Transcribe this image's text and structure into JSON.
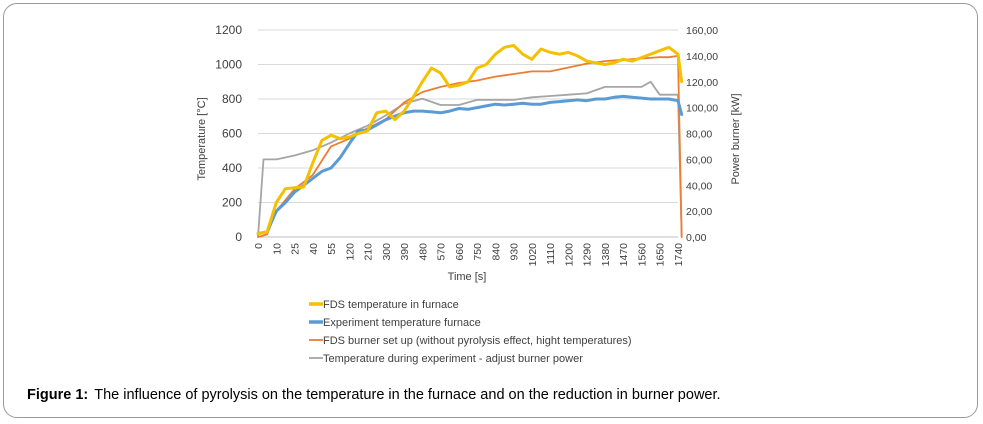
{
  "caption": {
    "label": "Figure 1:",
    "text": "The influence of pyrolysis on the temperature in the furnace and on the reduction in burner power."
  },
  "chart_data": {
    "type": "line",
    "title": "",
    "xlabel": "Time [s]",
    "ylabel": "Temperature [°C]",
    "y2label": "Power burner [kW]",
    "ylim": [
      0,
      1200
    ],
    "y2lim": [
      0,
      160
    ],
    "yticks": [
      "0",
      "200",
      "400",
      "600",
      "800",
      "1000",
      "1200"
    ],
    "y2ticks": [
      "0,00",
      "20,00",
      "40,00",
      "60,00",
      "80,00",
      "100,00",
      "120,00",
      "140,00",
      "160,00"
    ],
    "xticks": [
      "0",
      "10",
      "25",
      "40",
      "55",
      "120",
      "210",
      "300",
      "390",
      "480",
      "570",
      "660",
      "750",
      "840",
      "930",
      "1020",
      "1110",
      "1200",
      "1290",
      "1380",
      "1470",
      "1560",
      "1650",
      "1740"
    ],
    "grid": "horizontal",
    "legend_position": "bottom",
    "series": [
      {
        "name": "FDS temperature in furnace",
        "color": "#f5c000",
        "axis": "left",
        "x": [
          0,
          0.5,
          1,
          1.5,
          2,
          2.5,
          3,
          3.5,
          4,
          4.5,
          5,
          5.5,
          6,
          6.5,
          7,
          7.5,
          8,
          8.5,
          9,
          9.5,
          10,
          10.5,
          11,
          11.5,
          12,
          12.5,
          13,
          13.5,
          14,
          14.5,
          15,
          15.5,
          16,
          16.5,
          17,
          17.5,
          18,
          18.5,
          19,
          19.5,
          20,
          20.5,
          21,
          21.5,
          22,
          22.5,
          23,
          23.2
        ],
        "values": [
          20,
          30,
          200,
          280,
          285,
          290,
          430,
          560,
          590,
          570,
          580,
          600,
          615,
          720,
          730,
          680,
          730,
          810,
          900,
          980,
          950,
          870,
          880,
          900,
          980,
          1000,
          1060,
          1100,
          1110,
          1060,
          1030,
          1090,
          1070,
          1060,
          1070,
          1050,
          1020,
          1010,
          1000,
          1010,
          1030,
          1020,
          1040,
          1060,
          1080,
          1100,
          1060,
          900
        ]
      },
      {
        "name": "Experiment temperature furnace",
        "color": "#5b9bd5",
        "axis": "left",
        "x": [
          0,
          0.5,
          1,
          1.5,
          2,
          2.5,
          3,
          3.5,
          4,
          4.5,
          5,
          5.5,
          6,
          6.5,
          7,
          7.5,
          8,
          8.5,
          9,
          9.5,
          10,
          10.5,
          11,
          11.5,
          12,
          12.5,
          13,
          13.5,
          14,
          14.5,
          15,
          15.5,
          16,
          16.5,
          17,
          17.5,
          18,
          18.5,
          19,
          19.5,
          20,
          20.5,
          21,
          21.5,
          22,
          22.5,
          23,
          23.2
        ],
        "values": [
          20,
          30,
          150,
          200,
          260,
          300,
          340,
          380,
          400,
          460,
          540,
          615,
          620,
          650,
          680,
          700,
          720,
          730,
          730,
          725,
          720,
          730,
          745,
          740,
          750,
          760,
          770,
          765,
          770,
          775,
          770,
          770,
          780,
          785,
          790,
          795,
          790,
          800,
          800,
          810,
          815,
          810,
          805,
          800,
          800,
          800,
          790,
          710
        ]
      },
      {
        "name": "FDS burner set up (without pyrolysis effect, hight temperatures)",
        "color": "#ed7d31",
        "axis": "right",
        "x": [
          0,
          0.5,
          1,
          2,
          3,
          4,
          5,
          6,
          7,
          8,
          9,
          10,
          11,
          12,
          13,
          14,
          15,
          16,
          17,
          18,
          19,
          20,
          21,
          22,
          22.5,
          23,
          23.2
        ],
        "values": [
          0,
          2,
          20,
          37,
          48,
          70,
          76,
          84,
          91,
          104,
          112,
          116,
          119,
          121,
          124,
          126,
          128,
          128,
          131,
          134,
          136,
          137,
          138,
          139,
          139,
          140,
          0
        ]
      },
      {
        "name": "Temperature during experiment - adjust burner power",
        "color": "#a5a5a5",
        "axis": "right",
        "x": [
          0,
          0.3,
          0.6,
          1,
          2,
          3,
          4,
          5,
          6,
          7,
          8,
          9,
          10,
          11,
          12,
          13,
          14,
          15,
          16,
          17,
          18,
          19,
          20,
          21,
          21.5,
          22,
          22.5,
          23,
          23.2
        ],
        "values": [
          0,
          60,
          60,
          60,
          63,
          67,
          73,
          80,
          86,
          94,
          103,
          107,
          102,
          102,
          106,
          106,
          106,
          108,
          109,
          110,
          111,
          116,
          116,
          116,
          120,
          110,
          110,
          110,
          0
        ]
      }
    ]
  }
}
